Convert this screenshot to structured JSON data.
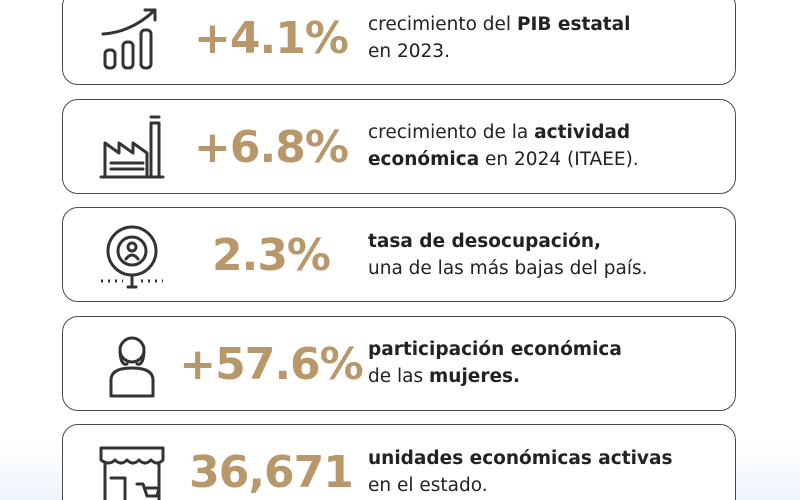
{
  "cards": [
    {
      "stat": "+4.1%",
      "lines": [
        [
          {
            "text": "crecimiento del ",
            "bold": false
          },
          {
            "text": "PIB estatal",
            "bold": true
          }
        ],
        [
          {
            "text": "en 2023.",
            "bold": false
          }
        ]
      ]
    },
    {
      "stat": "+6.8%",
      "lines": [
        [
          {
            "text": "crecimiento de la ",
            "bold": false
          },
          {
            "text": "actividad",
            "bold": true
          }
        ],
        [
          {
            "text": "económica",
            "bold": true
          },
          {
            "text": " en 2024 (ITAEE).",
            "bold": false
          }
        ]
      ]
    },
    {
      "stat": "2.3%",
      "lines": [
        [
          {
            "text": "tasa de desocupación,",
            "bold": true
          }
        ],
        [
          {
            "text": "una de las más bajas del país.",
            "bold": false
          }
        ]
      ]
    },
    {
      "stat": "+57.6%",
      "lines": [
        [
          {
            "text": "participación económica",
            "bold": true
          }
        ],
        [
          {
            "text": "de las ",
            "bold": false
          },
          {
            "text": "mujeres.",
            "bold": true
          }
        ]
      ]
    },
    {
      "stat": "36,671",
      "lines": [
        [
          {
            "text": "unidades económicas activas",
            "bold": true
          }
        ],
        [
          {
            "text": "en el estado.",
            "bold": false
          }
        ]
      ]
    }
  ]
}
